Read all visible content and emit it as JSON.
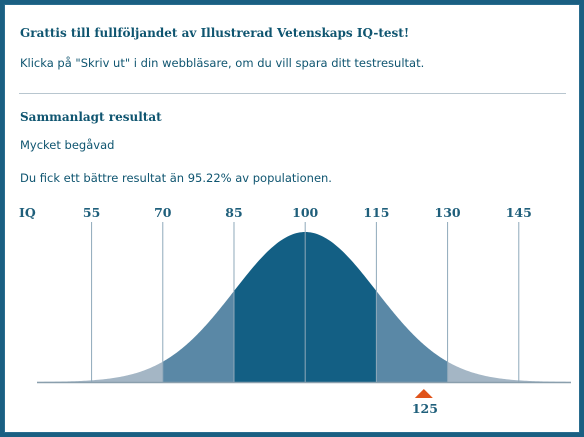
{
  "congrats_title": "Grattis till fullföljandet av Illustrerad Vetenskaps IQ-test!",
  "print_hint": "Klicka på \"Skriv ut\" i din webbläsare, om du vill spara ditt testresultat.",
  "result_heading": "Sammanlagt resultat",
  "classification": "Mycket begåvad",
  "percentile_text": "Du fick ett bättre resultat än 95.22% av populationen.",
  "chart_data": {
    "type": "area",
    "xlabel": "IQ",
    "tick_labels": [
      "55",
      "70",
      "85",
      "100",
      "115",
      "130",
      "145"
    ],
    "ticks": [
      55,
      70,
      85,
      100,
      115,
      130,
      145
    ],
    "xlim": [
      43.5,
      156
    ],
    "mean": 100,
    "sd": 15,
    "marker": {
      "value": 125,
      "label": "125"
    },
    "colors": {
      "center": "#135f84",
      "mid": "#5a88a6",
      "tail": "#a4b6c5",
      "marker": "#e0531a",
      "gridline": "#8fa9ba",
      "baseline": "#8a9fad"
    }
  }
}
